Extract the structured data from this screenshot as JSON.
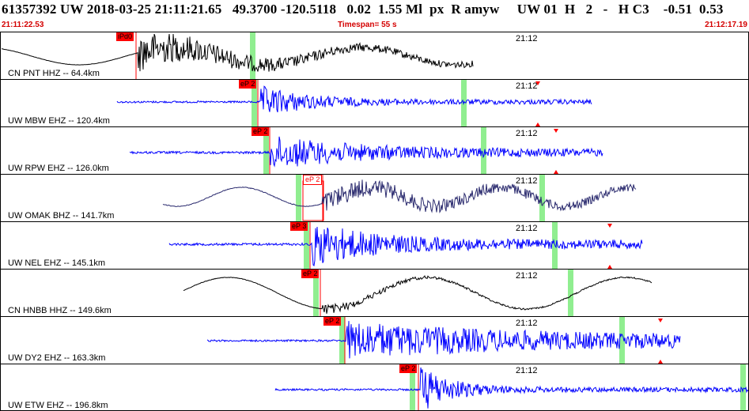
{
  "header": {
    "event_line": "61357392 UW 2018-03-25 21:11:21.65   49.3700 -120.5118   0.02  1.55 Ml  px  R amyw     UW 01  H   2   -   H C3    -0.51  0.53",
    "start_time": "21:11:22.53",
    "timespan": "Timespan=  55 s",
    "end_time": "21:12:17.19"
  },
  "colors": {
    "trace_black": "#000000",
    "trace_blue": "#0000ff",
    "trace_navy": "#2a2a6e",
    "pick_red": "#ff0000",
    "marker_green": "#90ee90",
    "header_red": "#d40000"
  },
  "panels": [
    {
      "station": "CN PNT HHZ -- 64.4km",
      "time_mark": "21:12",
      "pick": "iPd0",
      "pick_style": "solid"
    },
    {
      "station": "UW MBW EHZ -- 120.4km",
      "time_mark": "21:12",
      "pick": "eP 2",
      "pick_style": "solid"
    },
    {
      "station": "UW RPW EHZ -- 126.0km",
      "time_mark": "21:12",
      "pick": "eP 2",
      "pick_style": "solid"
    },
    {
      "station": "UW OMAK BHZ -- 141.7km",
      "time_mark": "21:12",
      "pick": "eP 2",
      "pick_style": "hollow"
    },
    {
      "station": "UW NEL EHZ -- 145.1km",
      "time_mark": "21:12",
      "pick": "eP 3",
      "pick_style": "solid"
    },
    {
      "station": "CN HNBB HHZ -- 149.6km",
      "time_mark": "21:12",
      "pick": "eP 2",
      "pick_style": "solid"
    },
    {
      "station": "UW DY2 EHZ -- 163.3km",
      "time_mark": "21:12",
      "pick": "eP 2",
      "pick_style": "solid"
    },
    {
      "station": "UW ETW EHZ -- 196.8km",
      "time_mark": "21:12",
      "pick": "eP 2",
      "pick_style": "solid"
    }
  ]
}
